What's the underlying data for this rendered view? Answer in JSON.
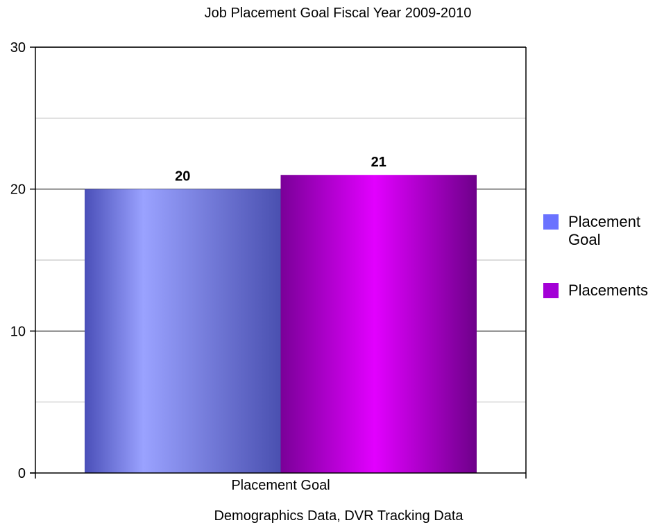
{
  "chart_data": {
    "type": "bar",
    "title": "Job Placement Goal Fiscal Year 2009-2010",
    "categories": [
      "Placement Goal"
    ],
    "series": [
      {
        "name": "Placement Goal",
        "values": [
          20
        ],
        "color": "#6a72ff"
      },
      {
        "name": "Placements",
        "values": [
          21
        ],
        "color": "#a300d6"
      }
    ],
    "xlabel": "Demographics Data, DVR Tracking Data",
    "ylabel": "",
    "ylim": [
      0,
      30
    ],
    "yticks": [
      0,
      10,
      20,
      30
    ],
    "grid": true,
    "legend_position": "right",
    "data_labels": [
      "20",
      "21"
    ]
  }
}
